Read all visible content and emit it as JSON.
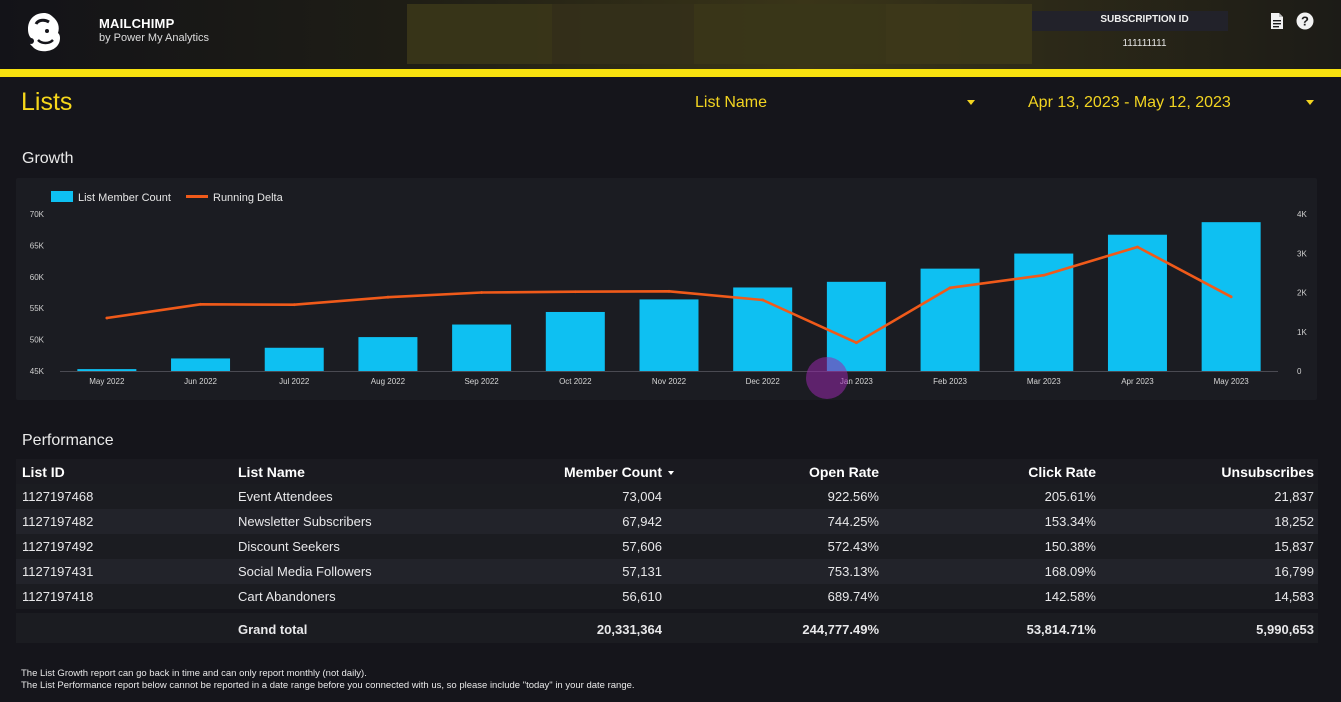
{
  "header": {
    "brand_title": "MAILCHIMP",
    "brand_subtitle": "by Power My Analytics",
    "subscription_label": "SUBSCRIPTION ID",
    "subscription_value": "111111111",
    "icons": [
      "document-icon",
      "help-icon"
    ],
    "accent_color": "#f7e10f"
  },
  "page": {
    "title": "Lists",
    "list_dropdown": "List Name",
    "date_dropdown": "Apr 13, 2023 - May 12, 2023"
  },
  "growth": {
    "section_title": "Growth"
  },
  "chart_data": {
    "type": "bar",
    "categories": [
      "May 2022",
      "Jun 2022",
      "Jul 2022",
      "Aug 2022",
      "Sep 2022",
      "Oct 2022",
      "Nov 2022",
      "Dec 2022",
      "Jan 2023",
      "Feb 2023",
      "Mar 2023",
      "Apr 2023",
      "May 2023"
    ],
    "series": [
      {
        "name": "List Member Count",
        "type": "bar",
        "axis": "left",
        "color": "#0ec0f2",
        "values": [
          45300,
          47000,
          48700,
          50400,
          52400,
          54400,
          56400,
          58300,
          59200,
          61300,
          63700,
          66700,
          68700
        ]
      },
      {
        "name": "Running Delta",
        "type": "line",
        "axis": "right",
        "color": "#f05a1a",
        "values": [
          1350,
          1700,
          1690,
          1880,
          2000,
          2020,
          2030,
          1810,
          720,
          2120,
          2440,
          3160,
          1890
        ]
      }
    ],
    "y_left": {
      "min": 45000,
      "max": 70000,
      "ticks": [
        "45K",
        "50K",
        "55K",
        "60K",
        "65K",
        "70K"
      ]
    },
    "y_right": {
      "min": 0,
      "max": 4000,
      "ticks": [
        "0",
        "1K",
        "2K",
        "3K",
        "4K"
      ]
    },
    "legend_position": "top-left"
  },
  "performance": {
    "section_title": "Performance",
    "columns": {
      "list_id": "List ID",
      "list_name": "List Name",
      "member_count": "Member Count",
      "open_rate": "Open Rate",
      "click_rate": "Click Rate",
      "unsubscribes": "Unsubscribes"
    },
    "rows": [
      {
        "list_id": "1127197468",
        "list_name": "Event Attendees",
        "member_count": "73,004",
        "open_rate": "922.56%",
        "click_rate": "205.61%",
        "unsubscribes": "21,837"
      },
      {
        "list_id": "1127197482",
        "list_name": "Newsletter Subscribers",
        "member_count": "67,942",
        "open_rate": "744.25%",
        "click_rate": "153.34%",
        "unsubscribes": "18,252"
      },
      {
        "list_id": "1127197492",
        "list_name": "Discount Seekers",
        "member_count": "57,606",
        "open_rate": "572.43%",
        "click_rate": "150.38%",
        "unsubscribes": "15,837"
      },
      {
        "list_id": "1127197431",
        "list_name": "Social Media Followers",
        "member_count": "57,131",
        "open_rate": "753.13%",
        "click_rate": "168.09%",
        "unsubscribes": "16,799"
      },
      {
        "list_id": "1127197418",
        "list_name": "Cart Abandoners",
        "member_count": "56,610",
        "open_rate": "689.74%",
        "click_rate": "142.58%",
        "unsubscribes": "14,583"
      }
    ],
    "total": {
      "label": "Grand total",
      "member_count": "20,331,364",
      "open_rate": "244,777.49%",
      "click_rate": "53,814.71%",
      "unsubscribes": "5,990,653"
    }
  },
  "notes": [
    "The List Growth report can go back in time and can only report monthly (not daily).",
    "The List Performance report below cannot be reported in a date range before you connected with us, so please include \"today\" in your date range."
  ]
}
